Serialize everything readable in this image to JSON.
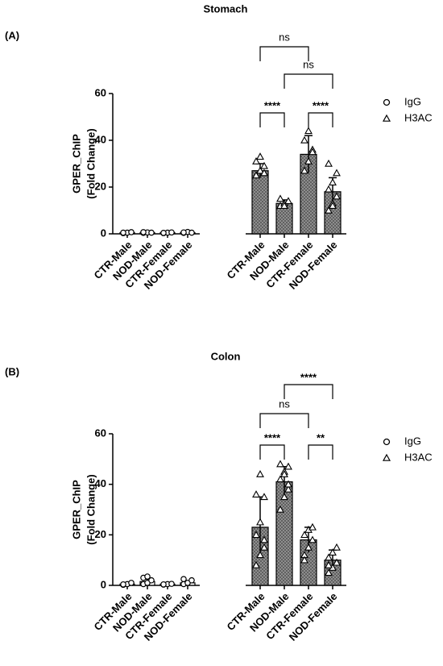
{
  "chart_data": [
    {
      "type": "bar",
      "panel": "(A)",
      "title": "Stomach",
      "ylabel": [
        "GPER_ChIP",
        "(Fold Change)"
      ],
      "categories": [
        "CTR-Male",
        "NOD-Male",
        "CTR-Female",
        "NOD-Female",
        "CTR-Male",
        "NOD-Male",
        "CTR-Female",
        "NOD-Female"
      ],
      "ylim": [
        0,
        60
      ],
      "yticks": [
        0,
        20,
        40,
        60
      ],
      "series": [
        {
          "name": "IgG",
          "marker": "circle",
          "color": "#ffffff",
          "values": [
            0.5,
            0.5,
            0.5,
            0.5,
            null,
            null,
            null,
            null
          ],
          "errors": [
            0.2,
            0.2,
            0.2,
            0.2,
            null,
            null,
            null,
            null
          ],
          "points": [
            [
              0.3,
              0.5,
              0.7,
              0.5
            ],
            [
              0.4,
              0.6,
              0.5,
              0.7
            ],
            [
              0.3,
              0.5,
              0.6,
              0.4
            ],
            [
              0.4,
              0.8,
              0.5,
              0.6
            ],
            null,
            null,
            null,
            null
          ]
        },
        {
          "name": "H3AC",
          "marker": "triangle",
          "color": "#8c8c8c",
          "values": [
            null,
            null,
            null,
            null,
            27,
            13,
            34,
            18
          ],
          "errors": [
            null,
            null,
            null,
            null,
            3,
            1.5,
            8,
            6
          ],
          "points": [
            null,
            null,
            null,
            null,
            [
              25,
              27,
              29,
              31,
              33,
              26
            ],
            [
              12,
              13,
              14,
              15,
              12
            ],
            [
              27,
              31,
              36,
              40,
              44,
              35
            ],
            [
              10,
              13,
              16,
              19,
              22,
              26,
              30,
              12
            ]
          ]
        }
      ],
      "comparisons": [
        {
          "groups": [
            4,
            5
          ],
          "label": "****"
        },
        {
          "groups": [
            6,
            7
          ],
          "label": "****"
        },
        {
          "groups": [
            5,
            7
          ],
          "label": "ns"
        },
        {
          "groups": [
            4,
            6
          ],
          "label": "ns"
        }
      ]
    },
    {
      "type": "bar",
      "panel": "(B)",
      "title": "Colon",
      "ylabel": [
        "GPER_ChIP",
        "(Fold Change)"
      ],
      "categories": [
        "CTR-Male",
        "NOD-Male",
        "CTR-Female",
        "NOD-Female",
        "CTR-Male",
        "NOD-Male",
        "CTR-Female",
        "NOD-Female"
      ],
      "ylim": [
        0,
        60
      ],
      "yticks": [
        0,
        20,
        40,
        60
      ],
      "series": [
        {
          "name": "IgG",
          "marker": "circle",
          "color": "#ffffff",
          "values": [
            0.5,
            1.5,
            0.5,
            1,
            null,
            null,
            null,
            null
          ],
          "errors": [
            0.3,
            1,
            0.2,
            0.8,
            null,
            null,
            null,
            null
          ],
          "points": [
            [
              0.2,
              0.5,
              1,
              0.4
            ],
            [
              0.5,
              1,
              2,
              3,
              3.5
            ],
            [
              0.3,
              0.5,
              0.6,
              0.4
            ],
            [
              0.5,
              1,
              2,
              2.5
            ],
            null,
            null,
            null,
            null
          ]
        },
        {
          "name": "H3AC",
          "marker": "triangle",
          "color": "#8c8c8c",
          "values": [
            null,
            null,
            null,
            null,
            23,
            41,
            18,
            10
          ],
          "errors": [
            null,
            null,
            null,
            null,
            12,
            6,
            5,
            4
          ],
          "points": [
            null,
            null,
            null,
            null,
            [
              8,
              12,
              15,
              20,
              25,
              35,
              36,
              44,
              18
            ],
            [
              30,
              35,
              38,
              42,
              45,
              47,
              48,
              44,
              40
            ],
            [
              12,
              15,
              18,
              20,
              22,
              23,
              10
            ],
            [
              5,
              7,
              9,
              11,
              13,
              15,
              8
            ]
          ]
        }
      ],
      "comparisons": [
        {
          "groups": [
            4,
            5
          ],
          "label": "****"
        },
        {
          "groups": [
            6,
            7
          ],
          "label": "**"
        },
        {
          "groups": [
            4,
            6
          ],
          "label": "ns"
        },
        {
          "groups": [
            5,
            7
          ],
          "label": "****"
        }
      ]
    }
  ]
}
